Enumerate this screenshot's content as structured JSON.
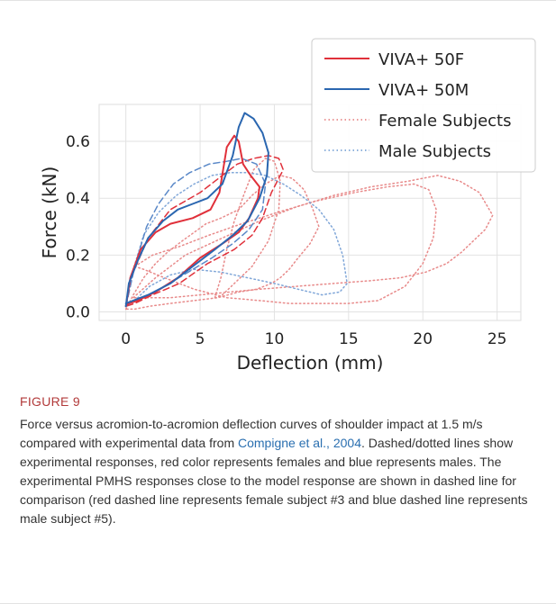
{
  "chart_data": {
    "type": "line",
    "xlabel": "Deflection (mm)",
    "ylabel": "Force (kN)",
    "xlim": [
      -1.8,
      26.6
    ],
    "ylim": [
      -0.03,
      0.73
    ],
    "xticks": [
      0,
      5,
      10,
      15,
      20,
      25
    ],
    "yticks": [
      0.0,
      0.2,
      0.4,
      0.6
    ],
    "grid": true,
    "legend_position": "top-right",
    "legend": [
      {
        "label": "VIVA+ 50F",
        "color": "#e0303a",
        "style": "solid"
      },
      {
        "label": "VIVA+ 50M",
        "color": "#2a66b0",
        "style": "solid"
      },
      {
        "label": "Female Subjects",
        "color": "#e88a8a",
        "style": "dotted"
      },
      {
        "label": "Male Subjects",
        "color": "#7fa6d8",
        "style": "dotted"
      }
    ],
    "series": [
      {
        "name": "VIVA+ 50F",
        "color": "#e0303a",
        "style": "solid",
        "x": [
          0,
          0.3,
          1.0,
          2.0,
          3.0,
          4.5,
          5.7,
          6.3,
          6.8,
          7.3,
          7.6,
          7.9,
          8.4,
          9.0,
          8.9,
          8.3,
          7.6,
          6.5,
          5.0,
          3.5,
          2.0,
          0.8,
          0.2,
          0
        ],
        "y": [
          0.02,
          0.12,
          0.22,
          0.28,
          0.31,
          0.33,
          0.36,
          0.42,
          0.58,
          0.62,
          0.6,
          0.52,
          0.48,
          0.44,
          0.4,
          0.33,
          0.28,
          0.24,
          0.19,
          0.12,
          0.07,
          0.04,
          0.03,
          0.02
        ]
      },
      {
        "name": "VIVA+ 50M",
        "color": "#2a66b0",
        "style": "solid",
        "x": [
          0,
          0.2,
          0.8,
          1.5,
          2.5,
          3.5,
          4.5,
          5.5,
          6.5,
          7.2,
          7.6,
          8.0,
          8.6,
          9.2,
          9.6,
          9.5,
          9.0,
          8.2,
          7.2,
          6.0,
          4.5,
          3.0,
          1.5,
          0.5,
          0
        ],
        "y": [
          0.02,
          0.1,
          0.18,
          0.26,
          0.32,
          0.36,
          0.38,
          0.4,
          0.45,
          0.55,
          0.65,
          0.7,
          0.68,
          0.63,
          0.56,
          0.48,
          0.4,
          0.32,
          0.27,
          0.22,
          0.16,
          0.1,
          0.06,
          0.04,
          0.03
        ]
      },
      {
        "name": "Female Subjects (dashed)",
        "color": "#e0303a",
        "style": "dashed",
        "x": [
          0,
          0.5,
          1.5,
          3.0,
          5.0,
          6.5,
          7.5,
          8.6,
          9.6,
          10.3,
          10.6,
          9.8,
          9.2,
          8.5,
          7.3,
          5.5,
          3.6,
          1.8,
          0.6,
          0
        ],
        "y": [
          0.02,
          0.14,
          0.26,
          0.36,
          0.42,
          0.48,
          0.52,
          0.54,
          0.55,
          0.54,
          0.5,
          0.42,
          0.33,
          0.27,
          0.22,
          0.17,
          0.1,
          0.06,
          0.03,
          0.02
        ]
      },
      {
        "name": "Male Subjects (dashed)",
        "color": "#5a88c8",
        "style": "dashed",
        "x": [
          0,
          0.6,
          1.4,
          2.2,
          3.2,
          4.3,
          5.6,
          6.8,
          7.8,
          8.8,
          9.4,
          9.2,
          8.3,
          7.2,
          5.8,
          4.2,
          2.6,
          1.2,
          0.3,
          0
        ],
        "y": [
          0.02,
          0.16,
          0.3,
          0.38,
          0.45,
          0.49,
          0.52,
          0.53,
          0.54,
          0.52,
          0.45,
          0.36,
          0.29,
          0.24,
          0.19,
          0.14,
          0.09,
          0.05,
          0.03,
          0.02
        ]
      },
      {
        "name": "Female Subjects",
        "color": "#e88a8a",
        "style": "dotted",
        "x": [
          0,
          0.5,
          1.2,
          2.0,
          2.8,
          3.8,
          4.6,
          5.4,
          6.4,
          7.6,
          8.5,
          9.4,
          10.4,
          11.2,
          12.0,
          12.6,
          13.0,
          12.4,
          11.6,
          11.0,
          10.4,
          9.8,
          8.8,
          7.6,
          6.2,
          4.6,
          3.0,
          1.6,
          0.6,
          0
        ],
        "y": [
          0.01,
          0.06,
          0.12,
          0.17,
          0.21,
          0.25,
          0.28,
          0.31,
          0.33,
          0.36,
          0.41,
          0.45,
          0.48,
          0.47,
          0.43,
          0.36,
          0.3,
          0.24,
          0.19,
          0.15,
          0.12,
          0.1,
          0.08,
          0.07,
          0.05,
          0.04,
          0.03,
          0.02,
          0.01,
          0.01
        ]
      },
      {
        "name": "Female Subjects",
        "color": "#e88a8a",
        "style": "dotted",
        "x": [
          0.5,
          2.0,
          4.0,
          6.5,
          9.0,
          11.5,
          14.0,
          16.5,
          19.0,
          21.0,
          22.5,
          23.8,
          24.7,
          24.2,
          23.4,
          22.6,
          21.6,
          20.2,
          18.5,
          16.5,
          14.0,
          11.5,
          9.0,
          7.0,
          5.0,
          3.0,
          1.5,
          0.5
        ],
        "y": [
          0.05,
          0.12,
          0.2,
          0.26,
          0.32,
          0.37,
          0.41,
          0.44,
          0.46,
          0.48,
          0.46,
          0.42,
          0.34,
          0.29,
          0.25,
          0.21,
          0.17,
          0.14,
          0.12,
          0.11,
          0.1,
          0.09,
          0.08,
          0.07,
          0.06,
          0.05,
          0.05,
          0.05
        ]
      },
      {
        "name": "Female Subjects",
        "color": "#e88a8a",
        "style": "dotted",
        "x": [
          0.6,
          1.8,
          3.6,
          5.6,
          7.8,
          10.2,
          12.8,
          15.4,
          17.6,
          19.4,
          20.4,
          20.9,
          20.7,
          20.0,
          18.8,
          17.0,
          15.0,
          13.0,
          11.0,
          9.0,
          6.8,
          4.6,
          2.6,
          1.2,
          0.6
        ],
        "y": [
          0.16,
          0.2,
          0.23,
          0.27,
          0.31,
          0.35,
          0.39,
          0.42,
          0.44,
          0.45,
          0.43,
          0.36,
          0.26,
          0.17,
          0.09,
          0.04,
          0.03,
          0.03,
          0.03,
          0.04,
          0.05,
          0.08,
          0.12,
          0.15,
          0.16
        ]
      },
      {
        "name": "Female Subjects",
        "color": "#e88a8a",
        "style": "dotted",
        "x": [
          6.0,
          6.4,
          6.8,
          7.3,
          8.0,
          8.6,
          9.4,
          10.0,
          10.4,
          10.3,
          9.6,
          8.5,
          7.3,
          6.5,
          6.1,
          6.0
        ],
        "y": [
          0.05,
          0.12,
          0.22,
          0.32,
          0.42,
          0.5,
          0.54,
          0.53,
          0.46,
          0.36,
          0.25,
          0.16,
          0.1,
          0.06,
          0.05,
          0.05
        ]
      },
      {
        "name": "Male Subjects",
        "color": "#7fa6d8",
        "style": "dotted",
        "x": [
          0,
          0.5,
          1.2,
          2.2,
          3.4,
          4.6,
          5.8,
          7.0,
          8.2,
          9.4,
          10.6,
          11.8,
          13.0,
          14.0,
          14.6,
          14.9,
          14.4,
          13.2,
          11.6,
          10.0,
          8.2,
          6.4,
          4.6,
          3.0,
          1.6,
          0.6,
          0
        ],
        "y": [
          0.02,
          0.15,
          0.27,
          0.35,
          0.41,
          0.45,
          0.48,
          0.49,
          0.49,
          0.48,
          0.45,
          0.41,
          0.36,
          0.29,
          0.2,
          0.1,
          0.07,
          0.06,
          0.08,
          0.1,
          0.12,
          0.14,
          0.15,
          0.13,
          0.09,
          0.04,
          0.02
        ]
      }
    ]
  },
  "caption": {
    "label": "FIGURE 9",
    "text_before_link": "Force versus acromion-to-acromion deflection curves of shoulder impact at 1.5 m/s compared with experimental data from ",
    "link_text": "Compigne et al., 2004",
    "text_after_link": ". Dashed/dotted lines show experimental responses, red color represents females and blue represents males. The experimental PMHS responses close to the model response are shown in dashed line for comparison (red dashed line represents female subject #3 and blue dashed line represents male subject #5)."
  }
}
